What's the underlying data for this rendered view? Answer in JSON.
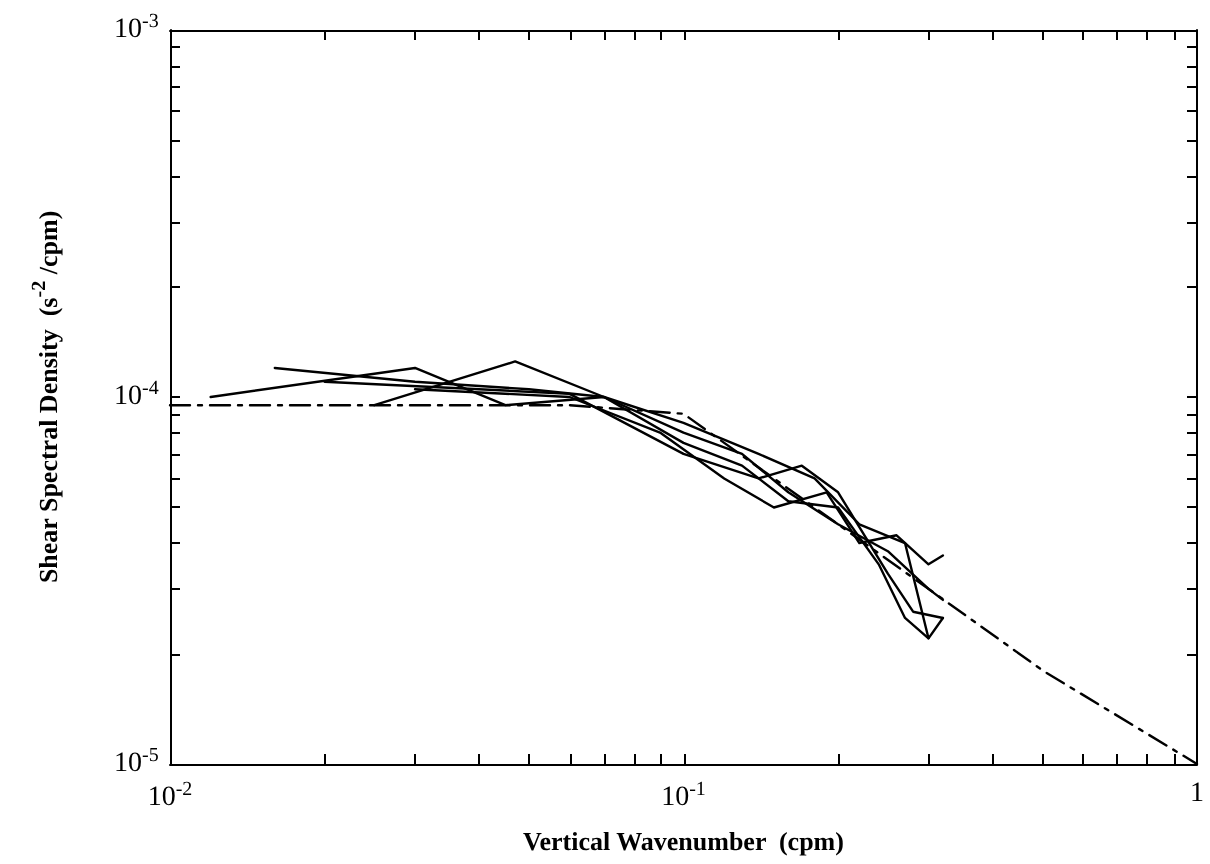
{
  "chart_data": {
    "type": "line",
    "xlabel": "Vertical Wavenumber  (cpm)",
    "ylabel": "Shear Spectral Density  (s$^{-2}$ /cpm)",
    "log": "xy",
    "grid": false,
    "marker": "none",
    "line_style": "solid",
    "xlim": [
      0.01,
      1
    ],
    "ylim": [
      1e-05,
      0.001
    ],
    "xticks": [
      {
        "value": 0.01,
        "label": "10$^{-2}$"
      },
      {
        "value": 0.02,
        "label": null
      },
      {
        "value": 0.03,
        "label": null
      },
      {
        "value": 0.04,
        "label": null
      },
      {
        "value": 0.05,
        "label": null
      },
      {
        "value": 0.06,
        "label": null
      },
      {
        "value": 0.07,
        "label": null
      },
      {
        "value": 0.08,
        "label": null
      },
      {
        "value": 0.09,
        "label": null
      },
      {
        "value": 0.1,
        "label": "10$^{-1}$"
      },
      {
        "value": 0.2,
        "label": null
      },
      {
        "value": 0.3,
        "label": null
      },
      {
        "value": 0.4,
        "label": null
      },
      {
        "value": 0.5,
        "label": null
      },
      {
        "value": 0.6,
        "label": null
      },
      {
        "value": 0.7,
        "label": null
      },
      {
        "value": 0.8,
        "label": null
      },
      {
        "value": 0.9,
        "label": null
      },
      {
        "value": 1,
        "label": "1"
      }
    ],
    "yticks": [
      {
        "value": 1e-05,
        "label": "10$^{-5}$"
      },
      {
        "value": 2e-05,
        "label": null
      },
      {
        "value": 3e-05,
        "label": null
      },
      {
        "value": 4e-05,
        "label": null
      },
      {
        "value": 5e-05,
        "label": null
      },
      {
        "value": 6e-05,
        "label": null
      },
      {
        "value": 7e-05,
        "label": null
      },
      {
        "value": 8e-05,
        "label": null
      },
      {
        "value": 9e-05,
        "label": null
      },
      {
        "value": 0.0001,
        "label": "10$^{-4}$"
      },
      {
        "value": 0.0002,
        "label": null
      },
      {
        "value": 0.0003,
        "label": null
      },
      {
        "value": 0.0004,
        "label": null
      },
      {
        "value": 0.0005,
        "label": null
      },
      {
        "value": 0.0006,
        "label": null
      },
      {
        "value": 0.0007,
        "label": null
      },
      {
        "value": 0.0008,
        "label": null
      },
      {
        "value": 0.0009,
        "label": null
      },
      {
        "value": 0.001,
        "label": "10$^{-3}$"
      }
    ],
    "series": [
      {
        "color": "#000000",
        "x": [
          0.012,
          0.03,
          0.045,
          0.07,
          0.1,
          0.13,
          0.16,
          0.2,
          0.25,
          0.3,
          0.32
        ],
        "values": [
          0.0001,
          0.00012,
          9.5e-05,
          0.0001,
          8e-05,
          7e-05,
          5.5e-05,
          4.5e-05,
          3.8e-05,
          3e-05,
          2.8e-05
        ]
      },
      {
        "color": "#000000",
        "x": [
          0.016,
          0.03,
          0.05,
          0.07,
          0.1,
          0.14,
          0.18,
          0.22,
          0.27,
          0.3,
          0.32
        ],
        "values": [
          0.00012,
          0.00011,
          0.000105,
          0.0001,
          8.5e-05,
          7e-05,
          6e-05,
          4.5e-05,
          4e-05,
          2.2e-05,
          2.5e-05
        ]
      },
      {
        "color": "#000000",
        "x": [
          0.025,
          0.047,
          0.07,
          0.1,
          0.13,
          0.16,
          0.2,
          0.24,
          0.27,
          0.3
        ],
        "values": [
          9.5e-05,
          0.000125,
          0.0001,
          7.5e-05,
          6.5e-05,
          5.2e-05,
          5e-05,
          3.5e-05,
          2.5e-05,
          2.2e-05
        ]
      },
      {
        "color": "#000000",
        "x": [
          0.02,
          0.04,
          0.06,
          0.1,
          0.14,
          0.17,
          0.2,
          0.25,
          0.28,
          0.32
        ],
        "values": [
          0.00011,
          0.000105,
          0.000102,
          7e-05,
          6e-05,
          6.5e-05,
          5.5e-05,
          3.3e-05,
          2.6e-05,
          2.5e-05
        ]
      },
      {
        "color": "#000000",
        "x": [
          0.03,
          0.06,
          0.09,
          0.12,
          0.15,
          0.19,
          0.22,
          0.26,
          0.3,
          0.32
        ],
        "values": [
          0.000105,
          0.0001,
          8e-05,
          6e-05,
          5e-05,
          5.5e-05,
          4e-05,
          4.2e-05,
          3.5e-05,
          3.7e-05
        ]
      },
      {
        "color": "#000000",
        "line_style": "dashed",
        "x": [
          0.01,
          0.06,
          0.1,
          0.2,
          0.5,
          1
        ],
        "values": [
          9.5e-05,
          9.5e-05,
          9e-05,
          4.5e-05,
          1.8e-05,
          1e-05
        ]
      }
    ]
  }
}
